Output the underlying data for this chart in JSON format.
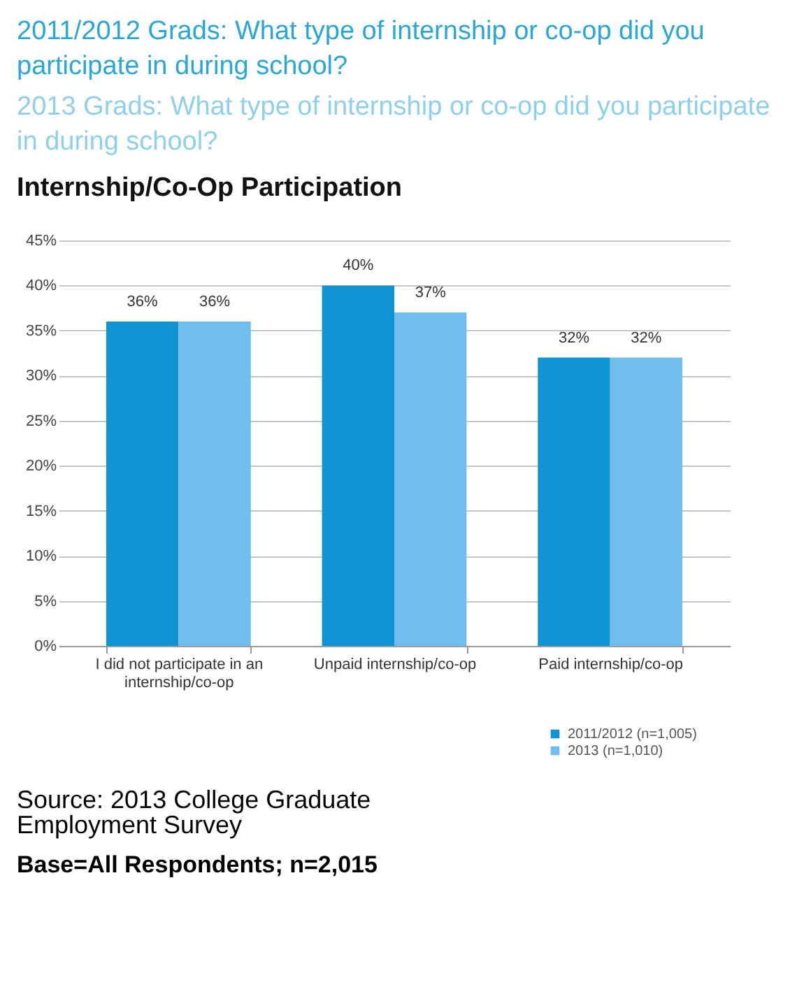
{
  "chart_data": {
    "type": "bar",
    "title": "Internship/Co-Op Participation",
    "categories": [
      "I did not participate in an internship/co-op",
      "Unpaid internship/co-op",
      "Paid internship/co-op"
    ],
    "series": [
      {
        "name": "2011/2012 (n=1,005)",
        "color": "#0f93d2",
        "values": [
          36,
          40,
          32
        ],
        "value_labels": [
          "36%",
          "40%",
          "32%"
        ]
      },
      {
        "name": "2013 (n=1,010)",
        "color": "#72bdf0",
        "values": [
          36,
          37,
          32
        ],
        "value_labels": [
          "36%",
          "37%",
          "32%"
        ]
      }
    ],
    "ylim": [
      0,
      45
    ],
    "yticks": [
      {
        "value": 0,
        "label": "0%"
      },
      {
        "value": 5,
        "label": "5%"
      },
      {
        "value": 10,
        "label": "10%"
      },
      {
        "value": 15,
        "label": "15%"
      },
      {
        "value": 20,
        "label": "20%"
      },
      {
        "value": 25,
        "label": "25%"
      },
      {
        "value": 30,
        "label": "30%"
      },
      {
        "value": 35,
        "label": "35%"
      },
      {
        "value": 40,
        "label": "40%"
      },
      {
        "value": 45,
        "label": "45%"
      }
    ],
    "grid": "y",
    "legend": "bottom right",
    "annotations": [
      "2011/2012 Grads: What type of internship or co-op did you participate in during school?",
      "2013 Grads: What type of internship or co-op did you participate in during school?",
      "Source: 2013 College Graduate Employment Survey",
      "Base=All Respondents; n=2,015"
    ]
  }
}
